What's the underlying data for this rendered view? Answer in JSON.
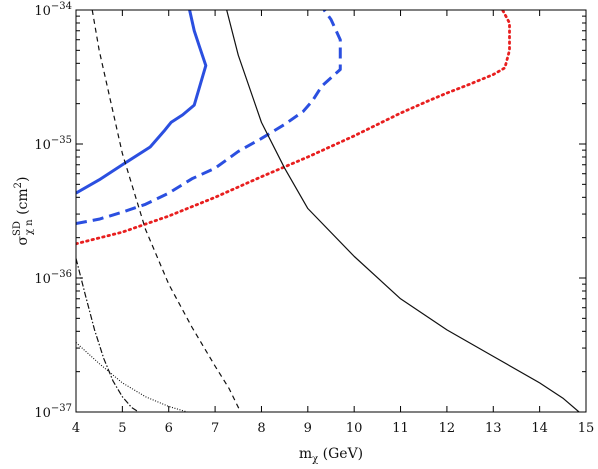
{
  "chart_data": {
    "type": "line",
    "title": "",
    "xlabel": {
      "main": "m",
      "sub": "χ",
      "unit": " (GeV)"
    },
    "ylabel": {
      "main": "σ",
      "sup": "SD",
      "sub": "χ n",
      "unit": " (cm",
      "unit_sup": "2",
      "unit_close": ")"
    },
    "xscale": "linear",
    "yscale": "log",
    "xlim": [
      4,
      15
    ],
    "ylim": [
      1e-37,
      1e-34
    ],
    "x_ticks": [
      4,
      5,
      6,
      7,
      8,
      9,
      10,
      11,
      12,
      13,
      14,
      15
    ],
    "x_tick_labels": [
      "4",
      "5",
      "6",
      "7",
      "8",
      "9",
      "10",
      "11",
      "12",
      "13",
      "14",
      "15"
    ],
    "y_ticks": [
      1e-37,
      1e-36,
      1e-35,
      1e-34
    ],
    "y_tick_labels": [
      {
        "base": "10",
        "exp": "−37"
      },
      {
        "base": "10",
        "exp": "−36"
      },
      {
        "base": "10",
        "exp": "−35"
      },
      {
        "base": "10",
        "exp": "−34"
      }
    ],
    "grid": false,
    "legend": "none",
    "series": [
      {
        "color": "#2b4fe0",
        "style": "solid",
        "width": 3,
        "x": [
          4.0,
          4.5,
          5.0,
          5.6,
          5.9,
          6.05,
          6.3,
          6.55,
          6.8,
          6.65,
          6.55,
          6.45
        ],
        "y": [
          4.3e-36,
          5.4e-36,
          7e-36,
          9.5e-36,
          1.25e-35,
          1.45e-35,
          1.65e-35,
          1.95e-35,
          3.85e-35,
          5.5e-35,
          7e-35,
          1e-34
        ]
      },
      {
        "color": "#2b4fe0",
        "style": "dashed",
        "width": 3,
        "x": [
          4.0,
          4.5,
          5.0,
          5.5,
          6.0,
          6.5,
          7.0,
          7.5,
          8.0,
          8.5,
          8.9,
          9.1,
          9.3,
          9.7,
          9.7,
          9.5,
          9.35
        ],
        "y": [
          2.55e-36,
          2.75e-36,
          3.1e-36,
          3.55e-36,
          4.3e-36,
          5.5e-36,
          6.6e-36,
          8.8e-36,
          1.1e-35,
          1.4e-35,
          1.75e-35,
          2.1e-35,
          2.7e-35,
          3.6e-35,
          6e-35,
          8.5e-35,
          1e-34
        ]
      },
      {
        "color": "#e81f1f",
        "style": "dotted",
        "width": 2.8,
        "x": [
          4.0,
          5.0,
          6.0,
          7.0,
          8.0,
          9.0,
          10.0,
          11.0,
          11.6,
          12.0,
          12.5,
          13.0,
          13.25,
          13.35,
          13.35,
          13.2
        ],
        "y": [
          1.8e-36,
          2.2e-36,
          2.9e-36,
          4e-36,
          5.7e-36,
          8e-36,
          1.15e-35,
          1.7e-35,
          2.1e-35,
          2.4e-35,
          2.8e-35,
          3.3e-35,
          3.7e-35,
          5e-35,
          8e-35,
          1e-34
        ]
      },
      {
        "color": "#111111",
        "style": "solid",
        "width": 1.2,
        "x": [
          7.25,
          7.5,
          8.0,
          8.5,
          9.0,
          10.0,
          11.0,
          12.0,
          13.0,
          14.0,
          14.5,
          14.85
        ],
        "y": [
          1e-34,
          4.6e-35,
          1.45e-35,
          6.6e-36,
          3.3e-36,
          1.45e-36,
          7e-37,
          4.1e-37,
          2.6e-37,
          1.65e-37,
          1.27e-37,
          1e-37
        ]
      },
      {
        "color": "#111111",
        "style": "dashed",
        "width": 1.2,
        "x": [
          4.35,
          4.5,
          5.0,
          5.5,
          6.0,
          6.5,
          7.0,
          7.3,
          7.55
        ],
        "y": [
          1e-34,
          5e-35,
          8.5e-36,
          2.3e-36,
          9e-37,
          4.3e-37,
          2.2e-37,
          1.5e-37,
          1e-37
        ]
      },
      {
        "color": "#111111",
        "style": "dashdot",
        "width": 1.2,
        "x": [
          4.0,
          4.2,
          4.4,
          4.6,
          4.8,
          5.0,
          5.2,
          5.35
        ],
        "y": [
          1.4e-36,
          7.5e-37,
          4.1e-37,
          2.5e-37,
          1.7e-37,
          1.3e-37,
          1.08e-37,
          1e-37
        ]
      },
      {
        "color": "#111111",
        "style": "finedotted",
        "width": 1.1,
        "x": [
          4.0,
          4.5,
          5.0,
          5.5,
          6.0,
          6.4
        ],
        "y": [
          3.3e-37,
          2.3e-37,
          1.65e-37,
          1.3e-37,
          1.1e-37,
          1e-37
        ]
      }
    ]
  }
}
